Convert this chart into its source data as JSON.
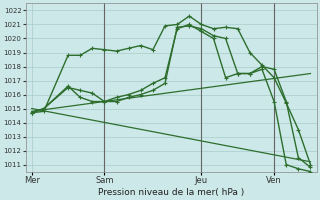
{
  "background_color": "#cce8e8",
  "grid_color": "#aacccc",
  "line_color": "#2d6e2d",
  "xlabel": "Pression niveau de la mer( hPa )",
  "ylim": [
    1010.5,
    1022.5
  ],
  "yticks": [
    1011,
    1012,
    1013,
    1014,
    1015,
    1016,
    1017,
    1018,
    1019,
    1020,
    1021,
    1022
  ],
  "day_labels": [
    "Mer",
    "Sam",
    "Jeu",
    "Ven"
  ],
  "day_positions": [
    0,
    6,
    14,
    20
  ],
  "total_points": 24,
  "line1_x": [
    0,
    1,
    3,
    4,
    5,
    6,
    7,
    8,
    9,
    10,
    11,
    12,
    13,
    14,
    15,
    16,
    17,
    18,
    19,
    20,
    21,
    22,
    23
  ],
  "line1_y": [
    1014.7,
    1014.8,
    1018.8,
    1018.8,
    1019.3,
    1019.2,
    1019.1,
    1019.3,
    1019.5,
    1019.2,
    1020.9,
    1021.0,
    1021.6,
    1021.0,
    1020.7,
    1020.8,
    1020.7,
    1019.0,
    1018.1,
    1017.2,
    1015.4,
    1013.5,
    1011.0
  ],
  "line2_x": [
    0,
    1,
    3,
    4,
    5,
    6,
    7,
    8,
    9,
    10,
    11,
    12,
    13,
    14,
    15,
    16,
    17,
    18,
    19,
    20,
    21,
    22,
    23
  ],
  "line2_y": [
    1014.7,
    1015.0,
    1016.5,
    1016.3,
    1016.1,
    1015.5,
    1015.5,
    1015.8,
    1016.0,
    1016.3,
    1016.8,
    1020.8,
    1020.9,
    1020.7,
    1020.2,
    1020.0,
    1017.5,
    1017.5,
    1018.0,
    1017.8,
    1015.5,
    1011.5,
    1010.8
  ],
  "line3_x": [
    0,
    1,
    3,
    4,
    5,
    6,
    7,
    8,
    9,
    10,
    11,
    12,
    13,
    14,
    15,
    16,
    17,
    18,
    19,
    20,
    21,
    22,
    23
  ],
  "line3_y": [
    1014.7,
    1015.0,
    1016.6,
    1015.8,
    1015.5,
    1015.5,
    1015.8,
    1016.0,
    1016.3,
    1016.8,
    1017.2,
    1020.7,
    1021.0,
    1020.5,
    1020.0,
    1017.2,
    1017.5,
    1017.5,
    1017.8,
    1015.5,
    1011.0,
    1010.7,
    1010.5
  ],
  "diag1": [
    1014.8,
    23,
    1017.5
  ],
  "diag2": [
    1015.0,
    23,
    1011.2
  ],
  "vline_positions": [
    6,
    14,
    20
  ]
}
